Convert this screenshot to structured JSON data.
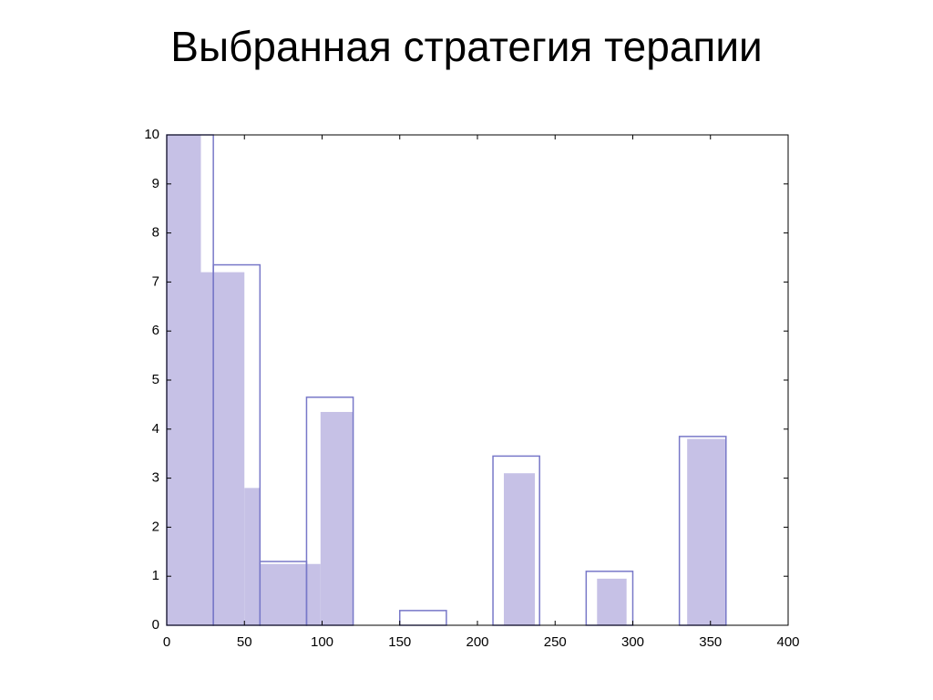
{
  "chart_data": {
    "type": "histogram",
    "title": "Выбранная стратегия терапии",
    "series": [
      {
        "color": "#c6c1e6",
        "style": "filled",
        "bins": [
          0,
          22,
          50,
          60,
          99,
          120,
          217,
          237,
          277,
          296,
          335,
          360
        ],
        "values": [
          10,
          7.2,
          2.8,
          1.25,
          4.35,
          0,
          3.1,
          0,
          0.95,
          0,
          3.8
        ]
      },
      {
        "color": "#7878c8",
        "style": "outline",
        "bins": [
          0,
          30,
          60,
          90,
          120,
          150,
          180,
          210,
          240,
          270,
          300,
          330,
          360
        ],
        "values": [
          10,
          7.35,
          1.3,
          4.65,
          0,
          0.3,
          0,
          3.45,
          0,
          1.1,
          0,
          3.85
        ]
      }
    ],
    "xlim": [
      0,
      400
    ],
    "xticks": [
      0,
      50,
      100,
      150,
      200,
      250,
      300,
      350,
      400
    ],
    "ylim": [
      0,
      10
    ],
    "yticks": [
      0,
      1,
      2,
      3,
      4,
      5,
      6,
      7,
      8,
      9,
      10
    ]
  }
}
